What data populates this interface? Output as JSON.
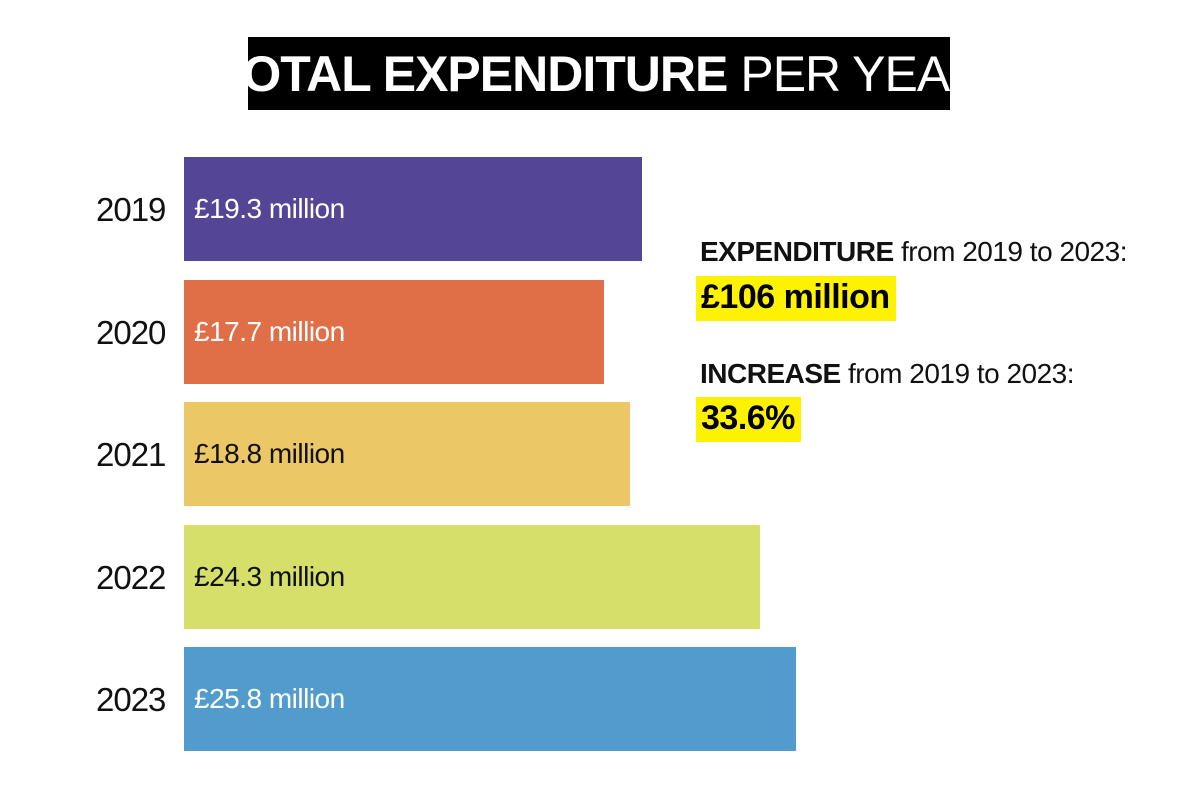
{
  "title": {
    "bold": "TOTAL EXPENDITURE",
    "normal": "PER YEAR"
  },
  "chart_data": {
    "type": "bar",
    "orientation": "horizontal",
    "title": "TOTAL EXPENDITURE PER YEAR",
    "categories": [
      "2019",
      "2020",
      "2021",
      "2022",
      "2023"
    ],
    "values": [
      19.3,
      17.7,
      18.8,
      24.3,
      25.8
    ],
    "value_labels": [
      "£19.3 million",
      "£17.7 million",
      "£18.8 million",
      "£24.3 million",
      "£25.8 million"
    ],
    "colors": [
      "#554596",
      "#e06f48",
      "#ecc766",
      "#d6df6a",
      "#519ccd"
    ],
    "label_colors": [
      "#ffffff",
      "#ffffff",
      "#111111",
      "#111111",
      "#ffffff"
    ],
    "xlim": [
      0,
      25.8
    ],
    "grid": false,
    "legend": "none"
  },
  "stats": {
    "expenditure": {
      "label_bold": "EXPENDITURE",
      "label_rest": "from 2019 to 2023:",
      "value": "£106 million"
    },
    "increase": {
      "label_bold": "INCREASE",
      "label_rest": "from 2019 to 2023:",
      "value": "33.6%"
    }
  },
  "colors": {
    "highlight": "#fff200",
    "title_background": "#000000"
  }
}
